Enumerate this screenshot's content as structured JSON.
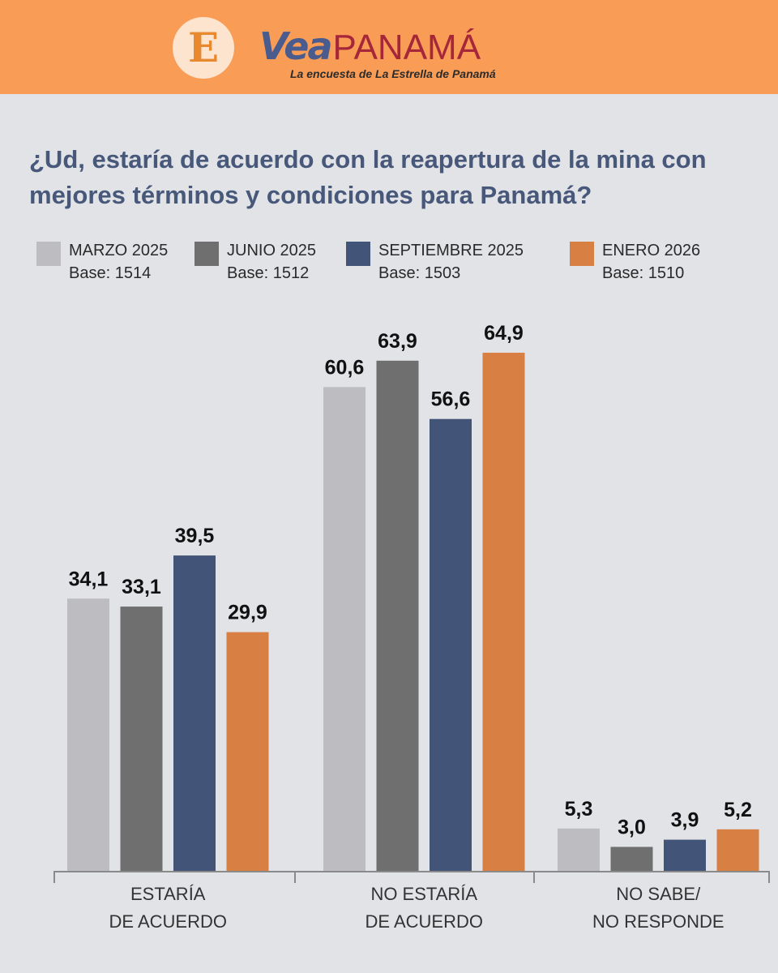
{
  "header": {
    "logo_letter": "E",
    "brand_vea": "Vea",
    "brand_panama": "PANAMÁ",
    "tagline": "La encuesta de La Estrella de Panamá"
  },
  "colors": {
    "header_bg": "#f99d56",
    "page_bg": "#e2e3e7",
    "title": "#47587a"
  },
  "chart_data": {
    "type": "bar",
    "title": "¿Ud, estaría de acuerdo con la reapertura de la mina con mejores términos y condiciones para Panamá?",
    "categories": [
      [
        "ESTARÍA",
        "DE ACUERDO"
      ],
      [
        "NO ESTARÍA",
        "DE ACUERDO"
      ],
      [
        "NO SABE/",
        "NO RESPONDE"
      ]
    ],
    "series": [
      {
        "name": "MARZO 2025",
        "base": "Base: 1514",
        "color": "#bdbdc1",
        "values": [
          34.1,
          60.6,
          5.3
        ],
        "labels": [
          "34,1",
          "60,6",
          "5,3"
        ]
      },
      {
        "name": "JUNIO 2025",
        "base": "Base: 1512",
        "color": "#6f6f6f",
        "values": [
          33.1,
          63.9,
          3.0
        ],
        "labels": [
          "33,1",
          "63,9",
          "3,0"
        ]
      },
      {
        "name": "SEPTIEMBRE 2025",
        "base": "Base: 1503",
        "color": "#425478",
        "values": [
          39.5,
          56.6,
          3.9
        ],
        "labels": [
          "39,5",
          "56,6",
          "3,9"
        ]
      },
      {
        "name": "ENERO 2026",
        "base": "Base: 1510",
        "color": "#d87f43",
        "values": [
          29.9,
          64.9,
          5.2
        ],
        "labels": [
          "29,9",
          "64,9",
          "5,2"
        ]
      }
    ],
    "ylim": [
      0,
      64.9
    ],
    "grid": false,
    "legend_position": "top"
  }
}
